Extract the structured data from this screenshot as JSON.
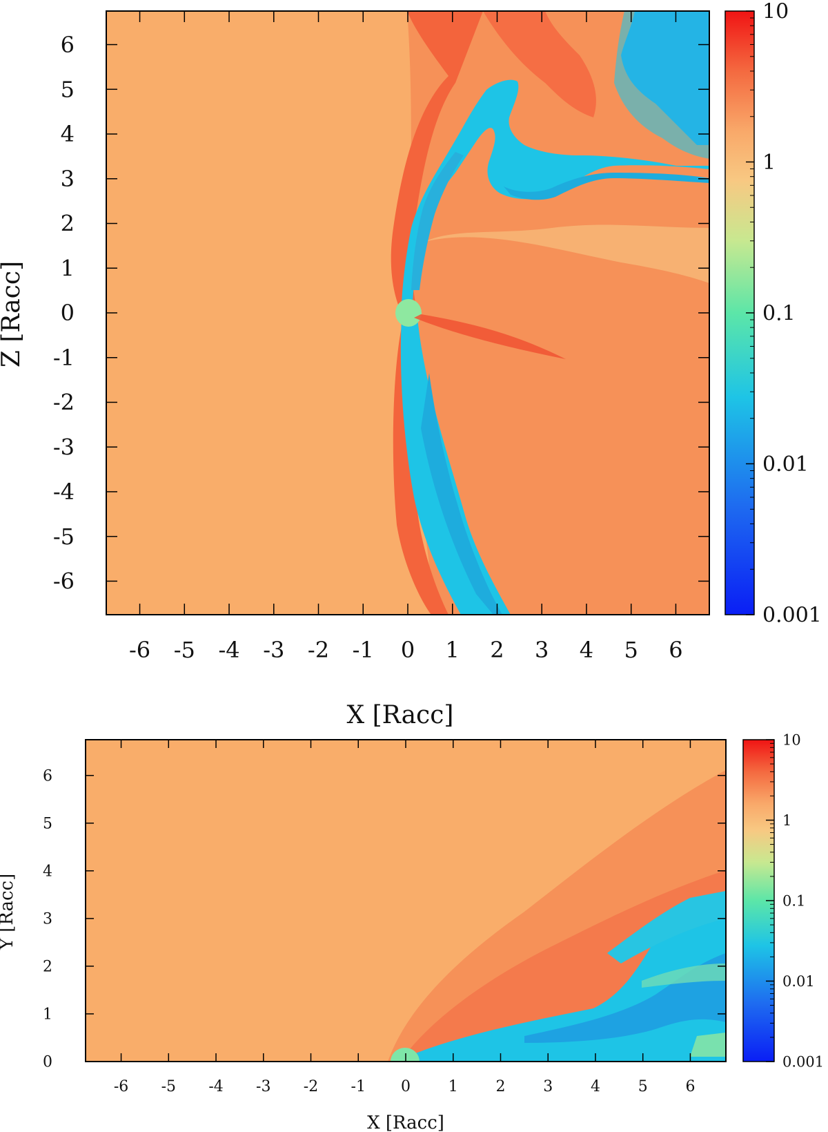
{
  "chart_data": [
    {
      "type": "heatmap",
      "panel": "top",
      "xlabel": "X [Racc]",
      "ylabel": "Z [Racc]",
      "xlim": [
        -6.75,
        6.75
      ],
      "ylim": [
        -6.75,
        6.75
      ],
      "xticks": [
        -6,
        -5,
        -4,
        -3,
        -2,
        -1,
        0,
        1,
        2,
        3,
        4,
        5,
        6
      ],
      "yticks": [
        -6,
        -5,
        -4,
        -3,
        -2,
        -1,
        0,
        1,
        2,
        3,
        4,
        5,
        6
      ],
      "colorbar": {
        "scale": "log",
        "min": 0.001,
        "max": 10,
        "ticks": [
          "10",
          "1",
          "0.1",
          "0.01",
          "0.001"
        ]
      },
      "features": {
        "ambient_level": 1.0,
        "accretor": {
          "x": 0,
          "y": 0,
          "radius": 0.3,
          "value": 0.3
        },
        "bow_shock_level": 3.0,
        "wake_level": 0.02,
        "upper_void_level": 0.008
      }
    },
    {
      "type": "heatmap",
      "panel": "bottom",
      "xlabel": "X [Racc]",
      "ylabel": "Y [Racc]",
      "xlim": [
        -6.75,
        6.75
      ],
      "ylim": [
        0,
        6.75
      ],
      "xticks": [
        -6,
        -5,
        -4,
        -3,
        -2,
        -1,
        0,
        1,
        2,
        3,
        4,
        5,
        6
      ],
      "yticks": [
        0,
        1,
        2,
        3,
        4,
        5,
        6
      ],
      "colorbar": {
        "scale": "log",
        "min": 0.001,
        "max": 10,
        "ticks": [
          "10",
          "1",
          "0.1",
          "0.01",
          "0.001"
        ]
      },
      "features": {
        "ambient_level": 1.0,
        "accretor": {
          "x": 0,
          "y": 0,
          "radius": 0.3,
          "value": 0.2
        },
        "shocked_shell_level": 2.5,
        "wake_level": 0.015
      }
    }
  ]
}
